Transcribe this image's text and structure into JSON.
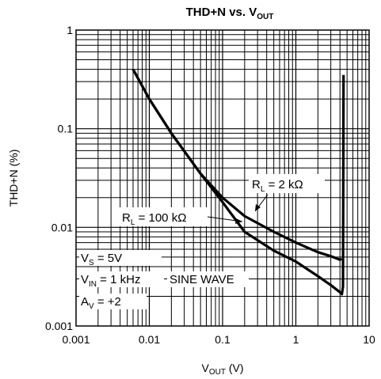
{
  "chart_data": {
    "type": "line",
    "title": "THD+N vs. V",
    "title_sub": "OUT",
    "xlabel": "V",
    "xlabel_sub": "OUT",
    "xlabel_unit": " (V)",
    "ylabel": "THD+N (%)",
    "x_scale": "log",
    "y_scale": "log",
    "xlim": [
      0.001,
      10
    ],
    "ylim": [
      0.001,
      1
    ],
    "x_ticks": [
      "0.001",
      "0.01",
      "0.1",
      "1",
      "10"
    ],
    "y_ticks": [
      "0.001",
      "0.01",
      "0.1",
      "1"
    ],
    "grid": true,
    "series": [
      {
        "name": "RL = 100 kΩ",
        "x": [
          0.006,
          0.01,
          0.02,
          0.05,
          0.1,
          0.2,
          0.5,
          1,
          2,
          3,
          4,
          4.25,
          4.4,
          4.45,
          4.48
        ],
        "y": [
          0.4,
          0.2,
          0.09,
          0.035,
          0.018,
          0.009,
          0.0058,
          0.0045,
          0.0032,
          0.0026,
          0.0022,
          0.0021,
          0.0025,
          0.08,
          0.35
        ]
      },
      {
        "name": "RL = 2 kΩ",
        "x": [
          0.006,
          0.01,
          0.02,
          0.05,
          0.1,
          0.2,
          0.5,
          1,
          2,
          3,
          4,
          4.2
        ],
        "y": [
          0.4,
          0.2,
          0.09,
          0.035,
          0.02,
          0.013,
          0.009,
          0.007,
          0.0056,
          0.0051,
          0.0047,
          0.0048
        ]
      }
    ],
    "annotations": {
      "rl2k": {
        "main": "R",
        "sub": "L",
        "rest": " = 2 kΩ"
      },
      "rl100k": {
        "main": "R",
        "sub": "L",
        "rest": " = 100 kΩ"
      },
      "vs": {
        "main": "V",
        "sub": "S",
        "rest": " = 5V"
      },
      "vin": {
        "main": "V",
        "sub": "IN",
        "rest": " = 1 kHz"
      },
      "sine": "SINE WAVE",
      "av": {
        "main": "A",
        "sub": "V",
        "rest": " = +2"
      }
    }
  }
}
